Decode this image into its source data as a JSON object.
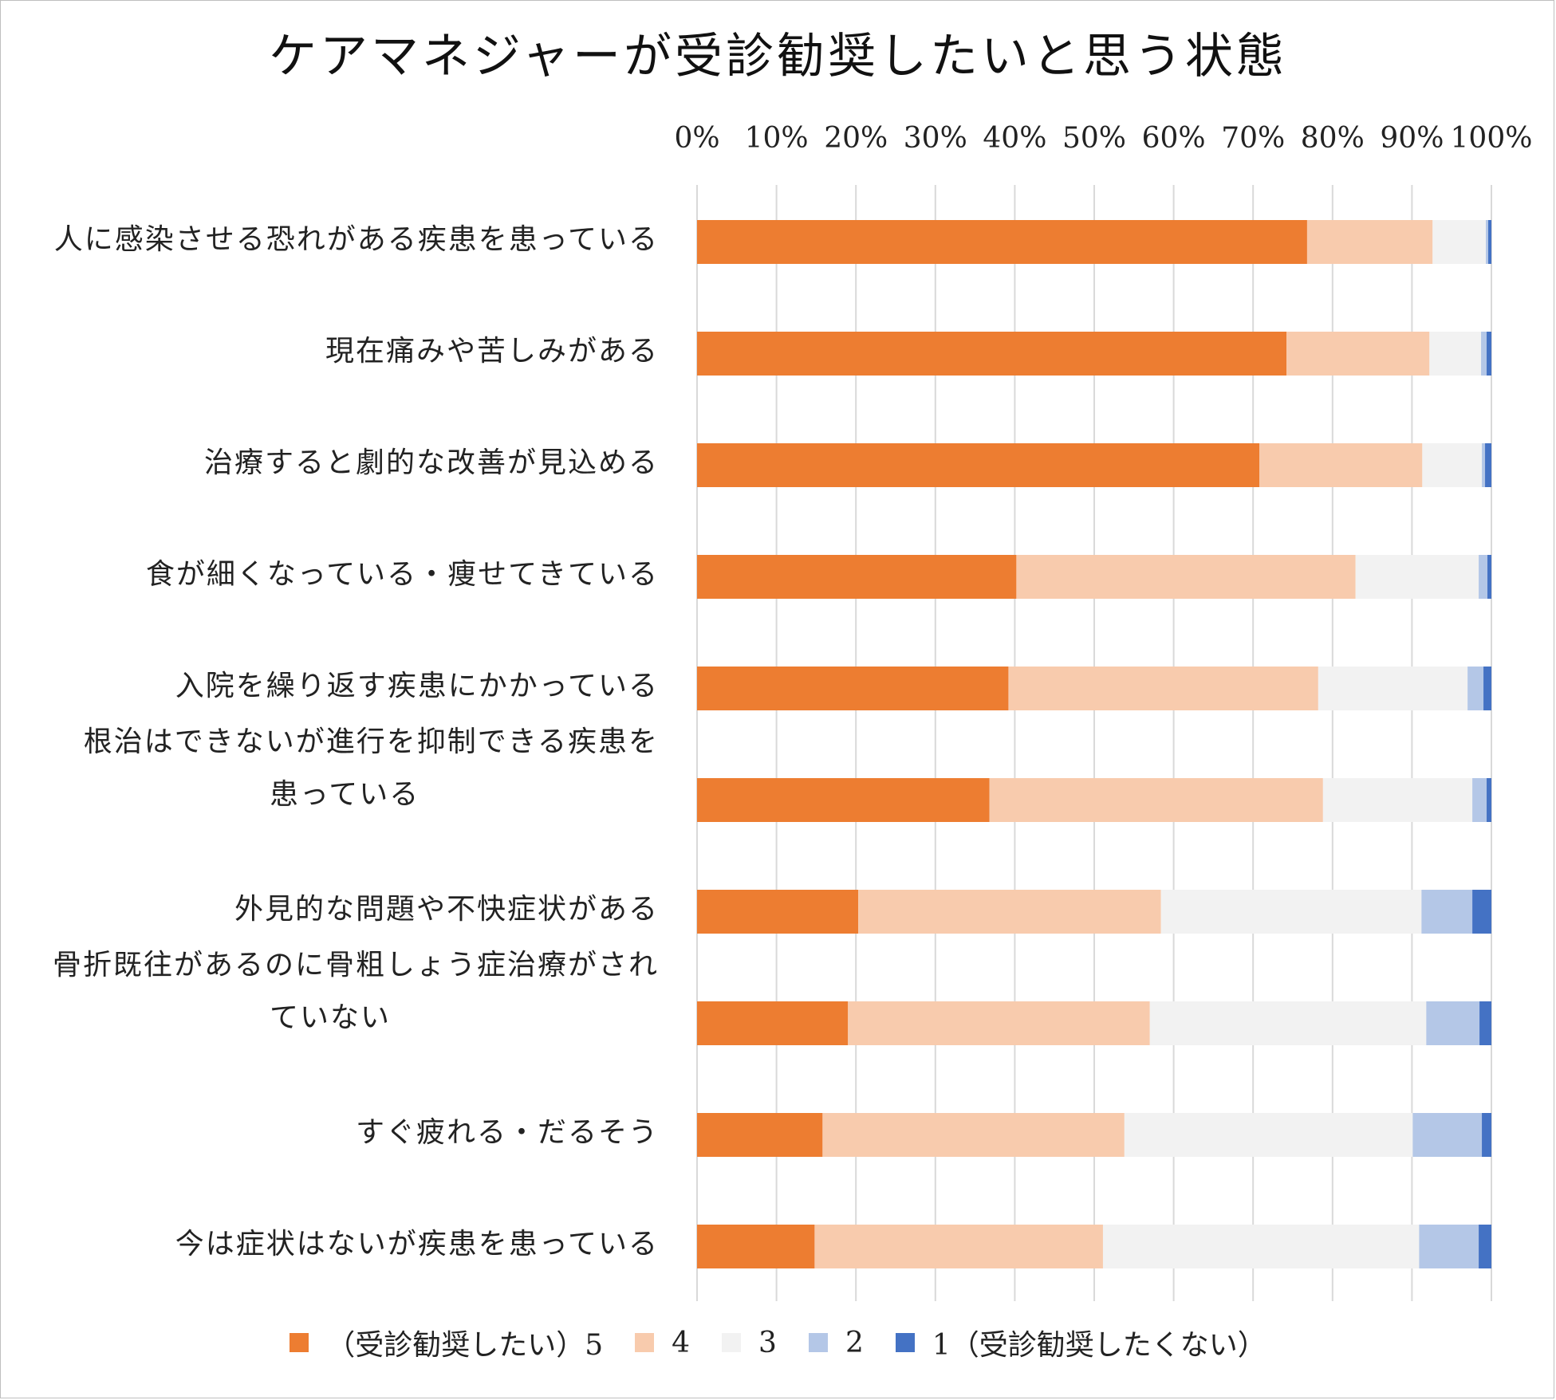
{
  "chart_data": {
    "type": "bar",
    "orientation": "horizontal",
    "stacked": "percent",
    "title": "ケアマネジャーが受診勧奨したいと思う状態",
    "xaxis": {
      "position": "top",
      "ticks": [
        "0%",
        "10%",
        "20%",
        "30%",
        "40%",
        "50%",
        "60%",
        "70%",
        "80%",
        "90%",
        "100%"
      ],
      "range": [
        0,
        100
      ]
    },
    "grid": true,
    "legend_position": "bottom",
    "categories": [
      "人に感染させる恐れがある疾患を患っている",
      "現在痛みや苦しみがある",
      "治療すると劇的な改善が見込める",
      "食が細くなっている・痩せてきている",
      "入院を繰り返す疾患にかかっている",
      "根治はできないが進行を抑制できる疾患を患っている",
      "外見的な問題や不快症状がある",
      "骨折既往があるのに骨粗しょう症治療がされていない",
      "すぐ疲れる・だるそう",
      "今は症状はないが疾患を患っている"
    ],
    "category_lines": [
      [
        "人に感染させる恐れがある疾患を患っている"
      ],
      [
        "現在痛みや苦しみがある"
      ],
      [
        "治療すると劇的な改善が見込める"
      ],
      [
        "食が細くなっている・痩せてきている"
      ],
      [
        "入院を繰り返す疾患にかかっている"
      ],
      [
        "根治はできないが進行を抑制できる疾患を",
        "患っている"
      ],
      [
        "外見的な問題や不快症状がある"
      ],
      [
        "骨折既往があるのに骨粗しょう症治療がされ",
        "ていない"
      ],
      [
        "すぐ疲れる・だるそう"
      ],
      [
        "今は症状はないが疾患を患っている"
      ]
    ],
    "series": [
      {
        "name": "（受診勧奨したい）5",
        "color": "#ED7D31",
        "values": [
          76.8,
          74.2,
          70.8,
          40.2,
          39.2,
          36.8,
          20.3,
          19.0,
          15.8,
          14.8
        ]
      },
      {
        "name": "4",
        "color": "#F8CBAD",
        "values": [
          15.8,
          18.0,
          20.5,
          42.7,
          39.0,
          42.0,
          38.1,
          38.0,
          38.0,
          36.3
        ]
      },
      {
        "name": "3",
        "color": "#F2F2F2",
        "values": [
          6.7,
          6.5,
          7.5,
          15.5,
          18.8,
          18.8,
          32.8,
          34.8,
          36.3,
          39.8
        ]
      },
      {
        "name": "2",
        "color": "#B4C7E7",
        "values": [
          0.3,
          0.7,
          0.4,
          1.1,
          2.0,
          1.8,
          6.4,
          6.7,
          8.7,
          7.5
        ]
      },
      {
        "name": "1（受診勧奨したくない）",
        "color": "#4472C4",
        "values": [
          0.4,
          0.6,
          0.8,
          0.5,
          1.0,
          0.6,
          2.4,
          1.5,
          1.2,
          1.6
        ]
      }
    ]
  }
}
